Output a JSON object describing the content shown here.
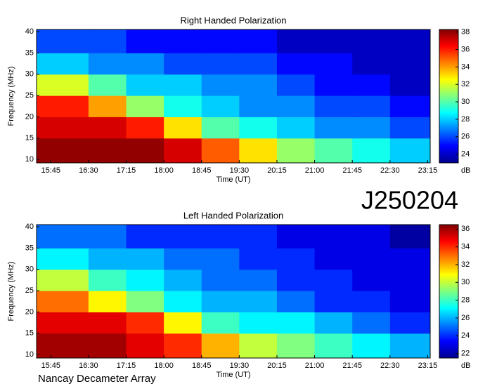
{
  "chart_data": [
    {
      "type": "heatmap",
      "title": "Right Handed Polarization",
      "x_label": "Time (UT)",
      "y_label": "Frequency (MHz)",
      "xlim": [
        928,
        1398
      ],
      "ylim": [
        9.2,
        40.5
      ],
      "xticks": [
        {
          "value": 945,
          "label": "15:45"
        },
        {
          "value": 990,
          "label": "16:30"
        },
        {
          "value": 1035,
          "label": "17:15"
        },
        {
          "value": 1080,
          "label": "18:00"
        },
        {
          "value": 1125,
          "label": "18:45"
        },
        {
          "value": 1170,
          "label": "19:30"
        },
        {
          "value": 1215,
          "label": "20:15"
        },
        {
          "value": 1260,
          "label": "21:00"
        },
        {
          "value": 1305,
          "label": "21:45"
        },
        {
          "value": 1350,
          "label": "22:30"
        },
        {
          "value": 1395,
          "label": "23:15"
        }
      ],
      "yticks": [
        10,
        15,
        20,
        25,
        30,
        35,
        40
      ],
      "x_bins": [
        928,
        990,
        1035,
        1080,
        1125,
        1170,
        1215,
        1260,
        1305,
        1350,
        1398
      ],
      "y_bins": [
        9.2,
        15,
        20,
        25,
        30,
        35,
        40.5
      ],
      "z": [
        [
          38,
          38,
          38,
          37,
          35,
          33,
          31,
          30,
          29,
          28
        ],
        [
          37,
          37,
          36,
          33,
          30,
          29,
          28,
          27,
          27,
          26
        ],
        [
          36,
          34,
          31,
          29,
          28,
          27,
          27,
          26,
          26,
          25
        ],
        [
          32,
          30,
          28,
          28,
          27,
          27,
          26,
          25,
          25,
          24
        ],
        [
          28,
          27,
          27,
          26,
          26,
          26,
          25,
          25,
          24,
          24
        ],
        [
          26,
          26,
          25,
          25,
          25,
          25,
          24,
          24,
          24,
          24
        ]
      ],
      "colorbar": {
        "lim": [
          23,
          38.3
        ],
        "ticks": [
          24,
          26,
          28,
          30,
          32,
          34,
          36,
          38
        ],
        "label": "dB"
      }
    },
    {
      "type": "heatmap",
      "title": "Left Handed Polarization",
      "x_label": "Time (UT)",
      "y_label": "Frequency (MHz)",
      "xlim": [
        928,
        1398
      ],
      "ylim": [
        9.2,
        40.5
      ],
      "xticks": [
        {
          "value": 945,
          "label": "15:45"
        },
        {
          "value": 990,
          "label": "16:30"
        },
        {
          "value": 1035,
          "label": "17:15"
        },
        {
          "value": 1080,
          "label": "18:00"
        },
        {
          "value": 1125,
          "label": "18:45"
        },
        {
          "value": 1170,
          "label": "19:30"
        },
        {
          "value": 1215,
          "label": "20:15"
        },
        {
          "value": 1260,
          "label": "21:00"
        },
        {
          "value": 1305,
          "label": "21:45"
        },
        {
          "value": 1350,
          "label": "22:30"
        },
        {
          "value": 1395,
          "label": "23:15"
        }
      ],
      "yticks": [
        10,
        15,
        20,
        25,
        30,
        35,
        40
      ],
      "x_bins": [
        928,
        990,
        1035,
        1080,
        1125,
        1170,
        1215,
        1260,
        1305,
        1350,
        1398
      ],
      "y_bins": [
        9.2,
        15,
        20,
        25,
        30,
        35,
        40.5
      ],
      "z": [
        [
          36,
          36,
          35,
          34,
          32,
          30,
          29,
          28,
          27,
          26
        ],
        [
          35,
          35,
          34,
          31,
          28,
          27,
          27,
          26,
          25,
          24
        ],
        [
          33,
          31,
          29,
          27,
          26,
          26,
          25,
          24,
          24,
          23
        ],
        [
          30,
          28,
          27,
          26,
          25,
          25,
          24,
          24,
          23,
          23
        ],
        [
          27,
          26,
          26,
          25,
          25,
          24,
          24,
          23,
          23,
          23
        ],
        [
          25,
          25,
          24,
          24,
          24,
          24,
          23,
          23,
          23,
          22
        ]
      ],
      "colorbar": {
        "lim": [
          21.5,
          36.5
        ],
        "ticks": [
          22,
          24,
          26,
          28,
          30,
          32,
          34,
          36
        ],
        "label": "dB"
      }
    }
  ],
  "observation_id": "J250204",
  "instrument": "Nancay Decameter Array"
}
